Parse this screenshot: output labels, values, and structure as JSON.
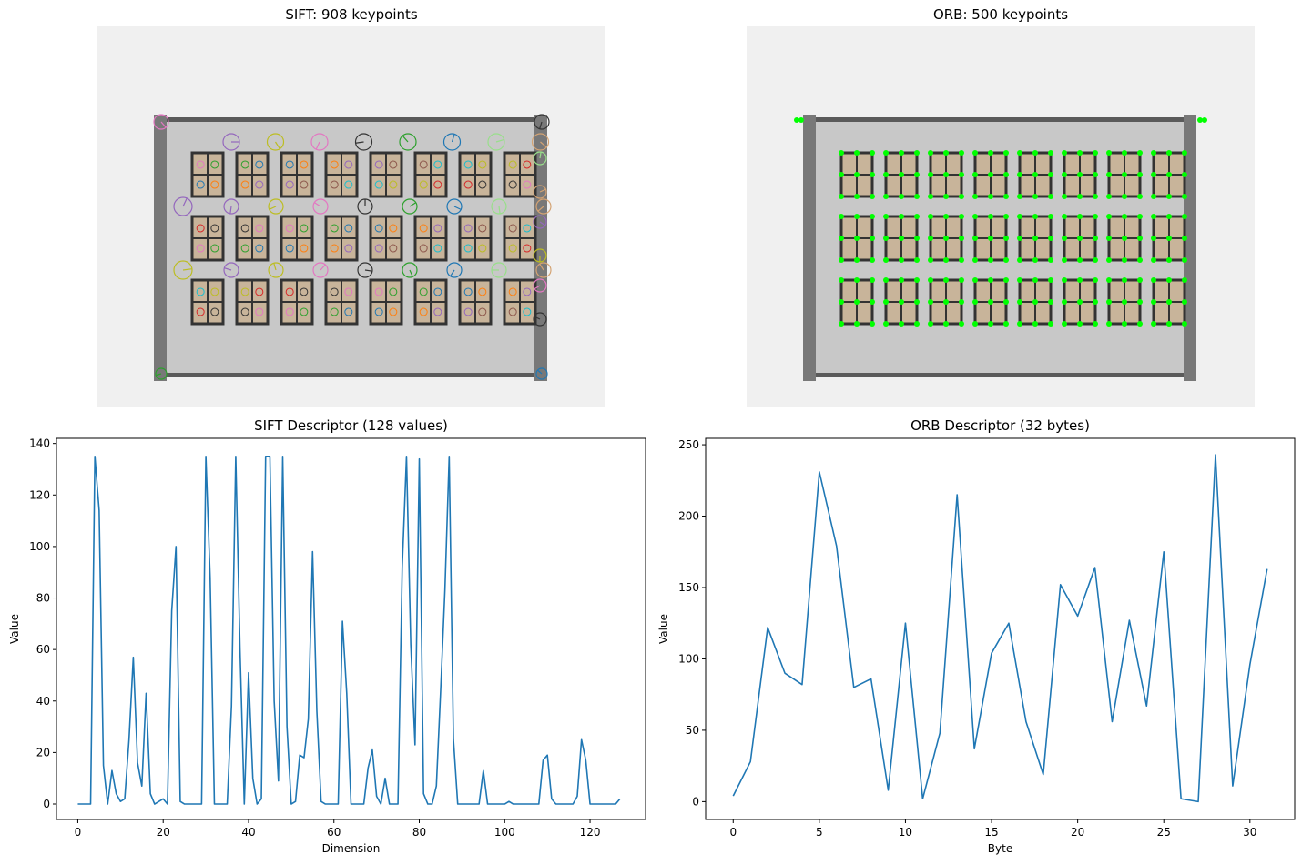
{
  "panels": {
    "sift_image_title": "SIFT: 908 keypoints",
    "orb_image_title": "ORB: 500 keypoints"
  },
  "colors": {
    "line": "#1f77b4",
    "orb_keypoint": "#00ff00",
    "building_wall": "#c8c8c8",
    "window_fill": "#c8b49a",
    "window_frame": "#333333",
    "pole": "#787878",
    "image_background": "#f0f0f0"
  },
  "chart_data": [
    {
      "type": "line",
      "title": "SIFT Descriptor (128 values)",
      "xlabel": "Dimension",
      "ylabel": "Value",
      "xlim": [
        -5,
        133
      ],
      "ylim": [
        -6,
        142
      ],
      "xticks": [
        0,
        20,
        40,
        60,
        80,
        100,
        120
      ],
      "yticks": [
        0,
        20,
        40,
        60,
        80,
        100,
        120,
        140
      ],
      "grid": false,
      "series": [
        {
          "values": [
            0,
            0,
            0,
            0,
            135,
            114,
            15,
            0,
            13,
            4,
            1,
            2,
            25,
            57,
            16,
            7,
            43,
            4,
            0,
            1,
            2,
            0,
            75,
            100,
            1,
            0,
            0,
            0,
            0,
            0,
            135,
            88,
            0,
            0,
            0,
            0,
            38,
            135,
            60,
            0,
            51,
            10,
            0,
            2,
            135,
            135,
            40,
            9,
            135,
            30,
            0,
            1,
            19,
            18,
            33,
            98,
            36,
            1,
            0,
            0,
            0,
            0,
            71,
            43,
            0,
            0,
            0,
            0,
            14,
            21,
            3,
            0,
            10,
            0,
            0,
            0,
            92,
            135,
            62,
            23,
            134,
            4,
            0,
            0,
            7,
            44,
            83,
            135,
            25,
            0,
            0,
            0,
            0,
            0,
            0,
            13,
            0,
            0,
            0,
            0,
            0,
            1,
            0,
            0,
            0,
            0,
            0,
            0,
            0,
            17,
            19,
            2,
            0,
            0,
            0,
            0,
            0,
            3,
            25,
            17,
            0,
            0,
            0,
            0,
            0,
            0,
            0,
            2
          ]
        }
      ]
    },
    {
      "type": "line",
      "title": "ORB Descriptor (32 bytes)",
      "xlabel": "Byte",
      "ylabel": "Value",
      "xlim": [
        -1.6,
        32.6
      ],
      "ylim": [
        -12.5,
        254.5
      ],
      "xticks": [
        0,
        5,
        10,
        15,
        20,
        25,
        30
      ],
      "yticks": [
        0,
        50,
        100,
        150,
        200,
        250
      ],
      "grid": false,
      "series": [
        {
          "values": [
            4,
            28,
            122,
            90,
            82,
            231,
            179,
            80,
            86,
            8,
            125,
            2,
            48,
            215,
            37,
            104,
            125,
            56,
            19,
            152,
            130,
            164,
            56,
            127,
            67,
            175,
            2,
            0,
            243,
            11,
            96,
            163
          ]
        }
      ]
    }
  ]
}
